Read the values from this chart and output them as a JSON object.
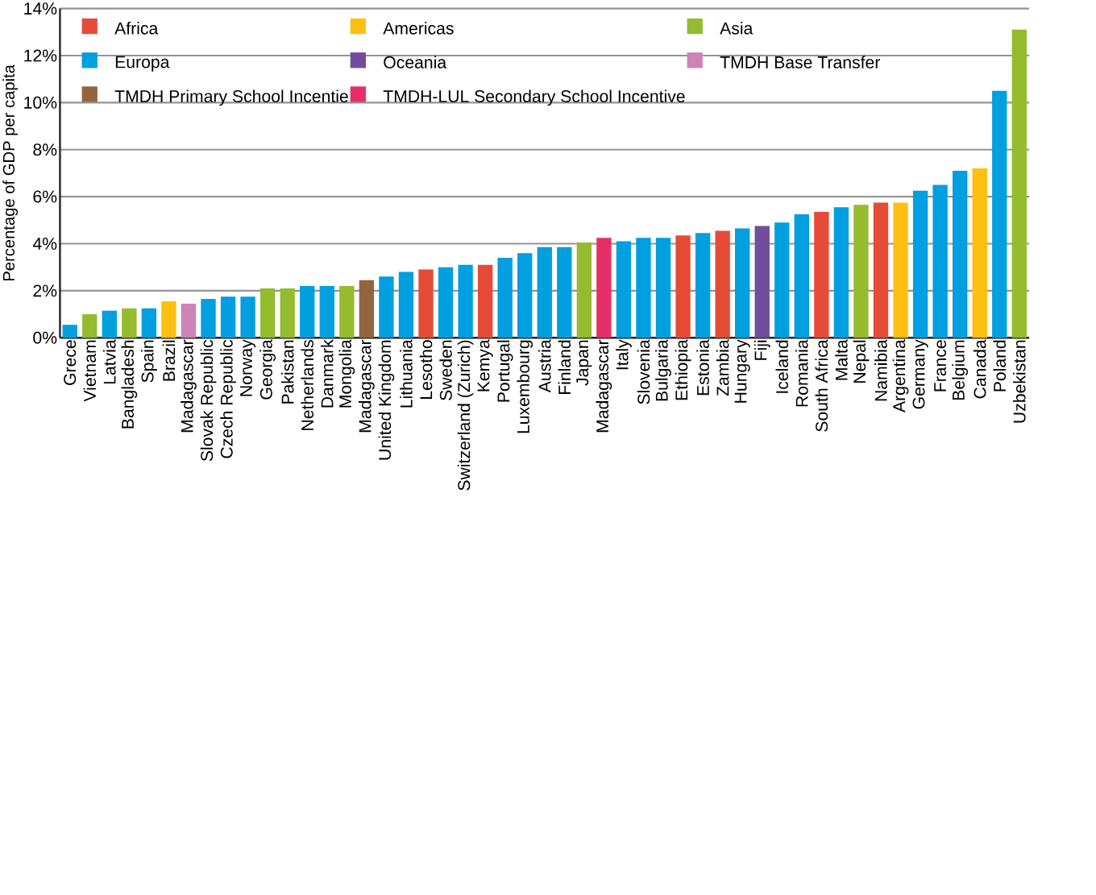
{
  "chart_data": {
    "type": "bar",
    "ylabel": "Percentage of GDP per capita",
    "categories": [
      "Grece",
      "Vietnam",
      "Latvia",
      "Bangladesh",
      "Spain",
      "Brazil",
      "Madagascar",
      "Slovak Republic",
      "Czech Republic",
      "Norway",
      "Georgia",
      "Pakistan",
      "Netherlands",
      "Danmark",
      "Mongolia",
      "Madagascar",
      "United Kingdom",
      "Lithuania",
      "Lesotho",
      "Sweden",
      "Switzerland (Zurich)",
      "Kemya",
      "Portugal",
      "Luxembourg",
      "Austria",
      "Finland",
      "Japan",
      "Madagascar",
      "Italy",
      "Slovenia",
      "Bulgaria",
      "Ethiopia",
      "Estonia",
      "Zambia",
      "Hungary",
      "Fiji",
      "Iceland",
      "Romania",
      "South Africa",
      "Malta",
      "Nepal",
      "Namibia",
      "Argentina",
      "Germany",
      "France",
      "Belgium",
      "Canada",
      "Poland",
      "Uzbekistan"
    ],
    "series": [
      {
        "name": "Africa",
        "color": "#e64b38",
        "values": [
          null,
          null,
          null,
          null,
          null,
          null,
          null,
          null,
          null,
          null,
          null,
          null,
          null,
          null,
          null,
          null,
          null,
          null,
          2.9,
          null,
          null,
          3.1,
          null,
          null,
          null,
          null,
          null,
          null,
          null,
          null,
          null,
          4.35,
          null,
          4.55,
          null,
          null,
          null,
          null,
          5.35,
          null,
          null,
          5.75,
          null,
          null,
          null,
          null,
          null,
          null,
          null
        ]
      },
      {
        "name": "Americas",
        "color": "#fdc010",
        "values": [
          null,
          null,
          null,
          null,
          null,
          1.55,
          null,
          null,
          null,
          null,
          null,
          null,
          null,
          null,
          null,
          null,
          null,
          null,
          null,
          null,
          null,
          null,
          null,
          null,
          null,
          null,
          null,
          null,
          null,
          null,
          null,
          null,
          null,
          null,
          null,
          null,
          null,
          null,
          null,
          null,
          null,
          null,
          5.75,
          null,
          null,
          null,
          7.2,
          null,
          null
        ]
      },
      {
        "name": "Asia",
        "color": "#95bb2f",
        "values": [
          null,
          1.0,
          null,
          1.25,
          null,
          null,
          null,
          null,
          null,
          null,
          2.1,
          2.1,
          null,
          null,
          2.2,
          null,
          null,
          null,
          null,
          null,
          null,
          null,
          null,
          null,
          null,
          null,
          4.05,
          null,
          null,
          null,
          null,
          null,
          null,
          null,
          null,
          null,
          null,
          null,
          null,
          null,
          5.65,
          null,
          null,
          null,
          null,
          null,
          null,
          null,
          13.1
        ]
      },
      {
        "name": "Europa",
        "color": "#009fe0",
        "values": [
          0.55,
          null,
          1.15,
          null,
          1.25,
          null,
          null,
          1.65,
          1.75,
          1.75,
          null,
          null,
          2.2,
          2.2,
          null,
          null,
          2.6,
          2.8,
          null,
          3.0,
          3.1,
          null,
          3.4,
          3.6,
          3.85,
          3.85,
          null,
          null,
          4.1,
          4.25,
          4.25,
          null,
          4.45,
          null,
          4.65,
          null,
          4.9,
          5.25,
          null,
          5.55,
          null,
          null,
          null,
          6.25,
          6.5,
          7.1,
          null,
          10.5,
          null
        ]
      },
      {
        "name": "Oceania",
        "color": "#714d9c",
        "values": [
          null,
          null,
          null,
          null,
          null,
          null,
          null,
          null,
          null,
          null,
          null,
          null,
          null,
          null,
          null,
          null,
          null,
          null,
          null,
          null,
          null,
          null,
          null,
          null,
          null,
          null,
          null,
          null,
          null,
          null,
          null,
          null,
          null,
          null,
          null,
          4.75,
          null,
          null,
          null,
          null,
          null,
          null,
          null,
          null,
          null,
          null,
          null,
          null,
          null
        ]
      },
      {
        "name": "TMDH Base Transfer",
        "color": "#cc84b8",
        "values": [
          null,
          null,
          null,
          null,
          null,
          null,
          1.45,
          null,
          null,
          null,
          null,
          null,
          null,
          null,
          null,
          null,
          null,
          null,
          null,
          null,
          null,
          null,
          null,
          null,
          null,
          null,
          null,
          null,
          null,
          null,
          null,
          null,
          null,
          null,
          null,
          null,
          null,
          null,
          null,
          null,
          null,
          null,
          null,
          null,
          null,
          null,
          null,
          null,
          null
        ]
      },
      {
        "name": "TMDH Primary School Incentie",
        "color": "#936440",
        "values": [
          null,
          null,
          null,
          null,
          null,
          null,
          null,
          null,
          null,
          null,
          null,
          null,
          null,
          null,
          null,
          2.45,
          null,
          null,
          null,
          null,
          null,
          null,
          null,
          null,
          null,
          null,
          null,
          null,
          null,
          null,
          null,
          null,
          null,
          null,
          null,
          null,
          null,
          null,
          null,
          null,
          null,
          null,
          null,
          null,
          null,
          null,
          null,
          null,
          null
        ]
      },
      {
        "name": "TMDH-LUL Secondary School Incentive",
        "color": "#e62f66",
        "values": [
          null,
          null,
          null,
          null,
          null,
          null,
          null,
          null,
          null,
          null,
          null,
          null,
          null,
          null,
          null,
          null,
          null,
          null,
          null,
          null,
          null,
          null,
          null,
          null,
          null,
          null,
          null,
          4.25,
          null,
          null,
          null,
          null,
          null,
          null,
          null,
          null,
          null,
          null,
          null,
          null,
          null,
          null,
          null,
          null,
          null,
          null,
          null,
          null,
          null
        ]
      }
    ],
    "ylim": [
      0,
      14
    ],
    "yticks": [
      {
        "value": 0,
        "label": "0%"
      },
      {
        "value": 2,
        "label": "2%"
      },
      {
        "value": 4,
        "label": "4%"
      },
      {
        "value": 6,
        "label": "6%"
      },
      {
        "value": 8,
        "label": "8%"
      },
      {
        "value": 10,
        "label": "10%"
      },
      {
        "value": 12,
        "label": "12%"
      },
      {
        "value": 14,
        "label": "14%"
      }
    ],
    "grid": "y",
    "legend": "top left"
  }
}
